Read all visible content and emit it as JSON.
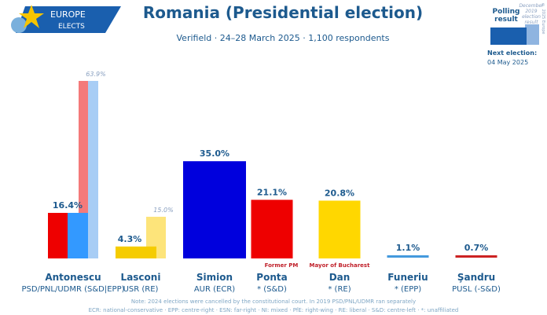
{
  "header": {
    "title": "Romania (Presidential election)",
    "subtitle": "Verifield · 24–28 March 2025 · 1,100 respondents",
    "logo_text_1": "EUROPE",
    "logo_text_2": "ELECTS"
  },
  "legend": {
    "polling_label": "Polling result",
    "previous_label": "December 2019 election result",
    "copyright": "© 2025 Europe Elects",
    "next_election_label": "Next election:",
    "next_election_date": "04 May 2025"
  },
  "chart_data": {
    "type": "bar",
    "title": "Romania (Presidential election)",
    "ylim": [
      0,
      70
    ],
    "grid": false,
    "categories": [
      "Antonescu",
      "Lasconi",
      "Simion",
      "Ponta",
      "Dan",
      "Funeriu",
      "Şandru"
    ],
    "parties": [
      "PSD/PNL/UDMR (S&D|EPP)",
      "USR (RE)",
      "AUR (ECR)",
      "* (S&D)",
      "* (RE)",
      "* (EPP)",
      "PUSL (-S&D)"
    ],
    "values": [
      16.4,
      4.3,
      35.0,
      21.1,
      20.8,
      1.1,
      0.7
    ],
    "value_labels": [
      "16.4%",
      "4.3%",
      "35.0%",
      "21.1%",
      "20.8%",
      "1.1%",
      "0.7%"
    ],
    "colors": [
      [
        "#ee0000",
        "#3399ff"
      ],
      [
        "#f5cc00"
      ],
      [
        "#0000dd"
      ],
      [
        "#ee0000"
      ],
      [
        "#ffd700"
      ],
      [
        "#4499dd"
      ],
      [
        "#cc2222"
      ]
    ],
    "previous": [
      {
        "value": 63.9,
        "label": "63.9%",
        "colors": [
          "#f47a7a",
          "#a8cdf5"
        ]
      },
      {
        "value": 15.0,
        "label": "15.0%",
        "colors": [
          "#fde47a"
        ]
      },
      null,
      null,
      null,
      null,
      null
    ],
    "annotations": [
      "",
      "",
      "",
      "Former PM",
      "Mayor of Bucharest",
      "",
      ""
    ]
  },
  "footer": {
    "note": "Note: 2024 elections were cancelled by the constitutional court. In 2019 PSD/PNL/UDMR ran separately",
    "groups": "ECR: national-conservative · EPP: centre-right · ESN: far-right · NI: mixed · PfE: right-wing · RE: liberal · S&D: centre-left · *: unaffiliated"
  },
  "colors": {
    "brand": "#1d5a8e",
    "logo_bg": "#1a5fae",
    "star": "#f5c400"
  }
}
